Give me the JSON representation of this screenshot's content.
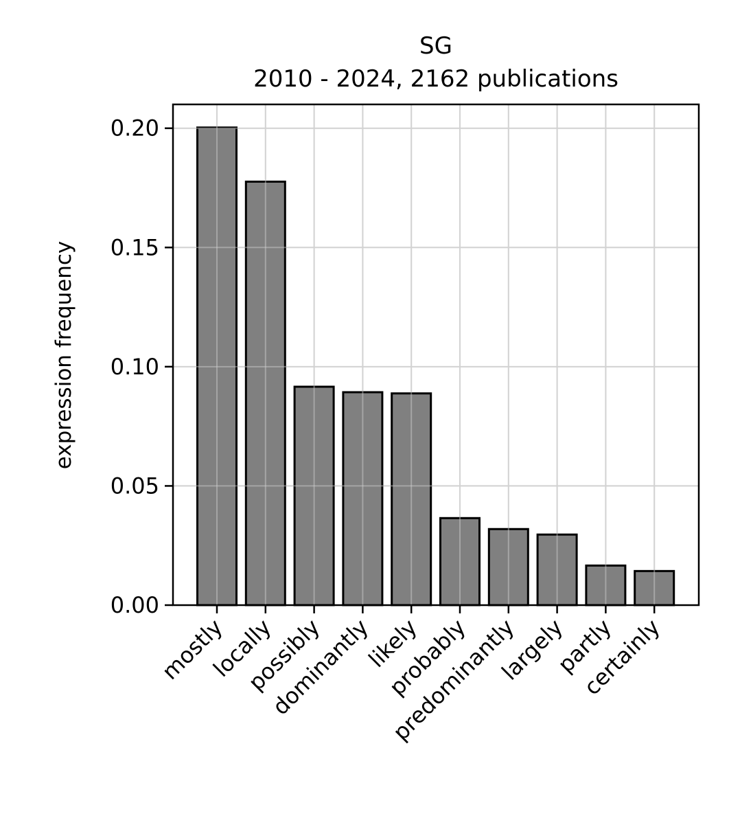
{
  "chart_data": {
    "type": "bar",
    "title": "SG",
    "subtitle": "2010 - 2024, 2162 publications",
    "xlabel": "",
    "ylabel": "expression frequency",
    "categories": [
      "mostly",
      "locally",
      "possibly",
      "dominantly",
      "likely",
      "probably",
      "predominantly",
      "largely",
      "partly",
      "certainly"
    ],
    "values": [
      0.2003,
      0.1776,
      0.0916,
      0.0893,
      0.0888,
      0.0365,
      0.0319,
      0.0296,
      0.0166,
      0.0143
    ],
    "ylim": [
      0,
      0.21
    ],
    "yticks": [
      0.0,
      0.05,
      0.1,
      0.15,
      0.2
    ],
    "ytick_labels": [
      "0.00",
      "0.05",
      "0.10",
      "0.15",
      "0.20"
    ],
    "grid": true,
    "legend": "none"
  },
  "colors": {
    "bar_fill": "#808080",
    "bar_edge": "#000000",
    "grid": "#d3d3d3",
    "axis": "#000000",
    "background": "#ffffff"
  }
}
